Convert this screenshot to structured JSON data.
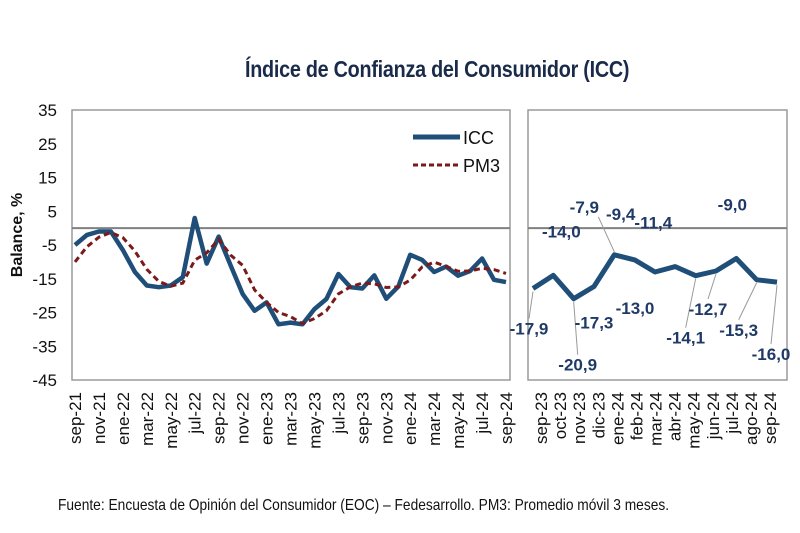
{
  "title": "Índice de Confianza del Consumidor (ICC)",
  "footer": "Fuente: Encuesta de Opinión del Consumidor (EOC) – Fedesarrollo. PM3: Promedio móvil 3 meses.",
  "colors": {
    "icc": "#1f4e79",
    "pm3": "#7b1a1a",
    "axis": "#9a9a9a",
    "zero": "#808080",
    "label": "#1f3a66"
  },
  "chart_data": [
    {
      "type": "line",
      "panel": "left",
      "title": "Índice de Confianza del Consumidor (ICC)",
      "ylabel": "Balance, %",
      "xlabel": "",
      "ylim": [
        -45,
        35
      ],
      "yticks": [
        "35",
        "25",
        "15",
        "5",
        "-5",
        "-15",
        "-25",
        "-35",
        "-45"
      ],
      "ytick_values": [
        35,
        25,
        15,
        5,
        -5,
        -15,
        -25,
        -35,
        -45
      ],
      "zero_line": 0,
      "grid": false,
      "legend": {
        "placement": "top-right",
        "entries": [
          {
            "name": "ICC",
            "style": "solid"
          },
          {
            "name": "PM3",
            "style": "dashed"
          }
        ]
      },
      "x": [
        "sep-21",
        "oct-21",
        "nov-21",
        "dic-21",
        "ene-22",
        "feb-22",
        "mar-22",
        "abr-22",
        "may-22",
        "jun-22",
        "jul-22",
        "ago-22",
        "sep-22",
        "oct-22",
        "nov-22",
        "dic-22",
        "ene-23",
        "feb-23",
        "mar-23",
        "abr-23",
        "may-23",
        "jun-23",
        "jul-23",
        "ago-23",
        "sep-23",
        "oct-23",
        "nov-23",
        "dic-23",
        "ene-24",
        "feb-24",
        "mar-24",
        "abr-24",
        "may-24",
        "jun-24",
        "jul-24",
        "ago-24",
        "sep-24"
      ],
      "xtick_labels": [
        "sep-21",
        "nov-21",
        "ene-22",
        "mar-22",
        "may-22",
        "jul-22",
        "sep-22",
        "nov-22",
        "ene-23",
        "mar-23",
        "may-23",
        "jul-23",
        "sep-23",
        "nov-23",
        "ene-24",
        "mar-24",
        "may-24",
        "jul-24",
        "sep-24"
      ],
      "series": [
        {
          "name": "ICC",
          "values": [
            -5.0,
            -2.0,
            -1.0,
            -1.0,
            -6.5,
            -13.0,
            -17.0,
            -17.5,
            -17.0,
            -14.5,
            3.0,
            -10.5,
            -2.5,
            -11.0,
            -19.5,
            -24.5,
            -22.0,
            -28.5,
            -28.0,
            -28.5,
            -24.0,
            -21.0,
            -13.6,
            -17.5,
            -17.9,
            -14.0,
            -20.9,
            -17.3,
            -7.9,
            -9.4,
            -13.0,
            -11.4,
            -14.1,
            -12.7,
            -9.0,
            -15.3,
            -16.0
          ]
        },
        {
          "name": "PM3",
          "values": [
            -10.0,
            -5.5,
            -2.7,
            -1.3,
            -2.8,
            -6.8,
            -12.2,
            -15.8,
            -17.2,
            -16.3,
            -9.5,
            -7.3,
            -3.3,
            -8.0,
            -11.0,
            -18.3,
            -22.0,
            -25.0,
            -26.2,
            -28.3,
            -26.8,
            -24.5,
            -19.5,
            -17.4,
            -16.3,
            -16.5,
            -17.6,
            -17.4,
            -15.4,
            -11.5,
            -10.1,
            -11.3,
            -12.8,
            -12.7,
            -11.9,
            -12.3,
            -13.4
          ]
        }
      ]
    },
    {
      "type": "line",
      "panel": "right",
      "ylim": [
        -45,
        35
      ],
      "zero_line": 0,
      "grid": false,
      "x": [
        "sep-23",
        "oct-23",
        "nov-23",
        "dic-23",
        "ene-24",
        "feb-24",
        "mar-24",
        "abr-24",
        "may-24",
        "jun-24",
        "jul-24",
        "ago-24",
        "sep-24"
      ],
      "xtick_labels": [
        "sep-23",
        "oct-23",
        "nov-23",
        "dic-23",
        "ene-24",
        "feb-24",
        "mar-24",
        "abr-24",
        "may-24",
        "jun-24",
        "jul-24",
        "ago-24",
        "sep-24"
      ],
      "series": [
        {
          "name": "ICC",
          "values": [
            -17.9,
            -14.0,
            -20.9,
            -17.3,
            -7.9,
            -9.4,
            -13.0,
            -11.4,
            -14.1,
            -12.7,
            -9.0,
            -15.3,
            -16.0
          ]
        }
      ],
      "data_labels": [
        {
          "text": "-17,9",
          "pos": "below",
          "leader": true
        },
        {
          "text": "-14,0",
          "pos": "above",
          "leader": false
        },
        {
          "text": "-20,9",
          "pos": "below",
          "leader": true
        },
        {
          "text": "-17,3",
          "pos": "below",
          "leader": false
        },
        {
          "text": "-7,9",
          "pos": "above-left",
          "leader": true
        },
        {
          "text": "-9,4",
          "pos": "above",
          "leader": false
        },
        {
          "text": "-13,0",
          "pos": "below",
          "leader": false
        },
        {
          "text": "-11,4",
          "pos": "above",
          "leader": false
        },
        {
          "text": "-14,1",
          "pos": "below",
          "leader": true
        },
        {
          "text": "-12,7",
          "pos": "below",
          "leader": true
        },
        {
          "text": "-9,0",
          "pos": "above",
          "leader": false
        },
        {
          "text": "-15,3",
          "pos": "below",
          "leader": true
        },
        {
          "text": "-16,0",
          "pos": "below",
          "leader": true
        }
      ]
    }
  ]
}
